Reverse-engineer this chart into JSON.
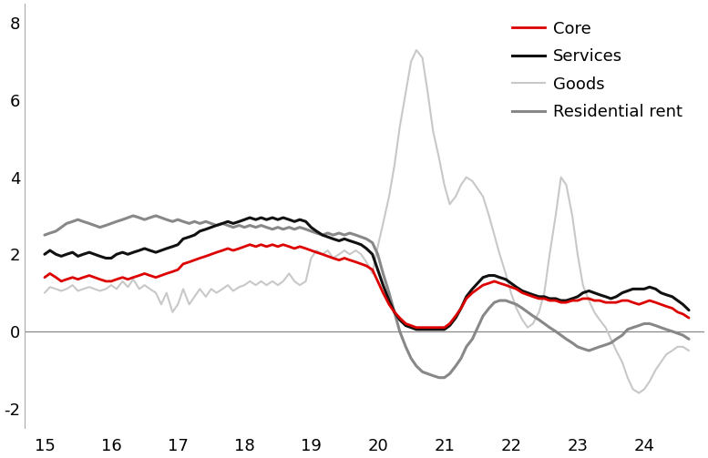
{
  "xlim": [
    14.7,
    24.9
  ],
  "ylim": [
    -2.5,
    8.5
  ],
  "yticks": [
    -2,
    0,
    2,
    4,
    6,
    8
  ],
  "xticks": [
    15,
    16,
    17,
    18,
    19,
    20,
    21,
    22,
    23,
    24
  ],
  "legend_labels": [
    "Core",
    "Services",
    "Goods",
    "Residential rent"
  ],
  "line_colors": {
    "core": "#dd0000",
    "services": "#111111",
    "goods": "#c8c8c8",
    "residential_rent": "#888888"
  },
  "line_widths": {
    "core": 2.0,
    "services": 2.2,
    "goods": 1.5,
    "residential_rent": 2.2
  },
  "core": {
    "x": [
      15.0,
      15.08,
      15.17,
      15.25,
      15.33,
      15.42,
      15.5,
      15.58,
      15.67,
      15.75,
      15.83,
      15.92,
      16.0,
      16.08,
      16.17,
      16.25,
      16.33,
      16.42,
      16.5,
      16.58,
      16.67,
      16.75,
      16.83,
      16.92,
      17.0,
      17.08,
      17.17,
      17.25,
      17.33,
      17.42,
      17.5,
      17.58,
      17.67,
      17.75,
      17.83,
      17.92,
      18.0,
      18.08,
      18.17,
      18.25,
      18.33,
      18.42,
      18.5,
      18.58,
      18.67,
      18.75,
      18.83,
      18.92,
      19.0,
      19.08,
      19.17,
      19.25,
      19.33,
      19.42,
      19.5,
      19.58,
      19.67,
      19.75,
      19.83,
      19.92,
      20.0,
      20.08,
      20.17,
      20.25,
      20.33,
      20.42,
      20.5,
      20.58,
      20.67,
      20.75,
      20.83,
      20.92,
      21.0,
      21.08,
      21.17,
      21.25,
      21.33,
      21.42,
      21.5,
      21.58,
      21.67,
      21.75,
      21.83,
      21.92,
      22.0,
      22.08,
      22.17,
      22.25,
      22.33,
      22.42,
      22.5,
      22.58,
      22.67,
      22.75,
      22.83,
      22.92,
      23.0,
      23.08,
      23.17,
      23.25,
      23.33,
      23.42,
      23.5,
      23.58,
      23.67,
      23.75,
      23.83,
      23.92,
      24.0,
      24.08,
      24.17,
      24.25,
      24.33,
      24.42,
      24.5,
      24.58,
      24.67
    ],
    "y": [
      1.4,
      1.5,
      1.4,
      1.3,
      1.35,
      1.4,
      1.35,
      1.4,
      1.45,
      1.4,
      1.35,
      1.3,
      1.3,
      1.35,
      1.4,
      1.35,
      1.4,
      1.45,
      1.5,
      1.45,
      1.4,
      1.45,
      1.5,
      1.55,
      1.6,
      1.75,
      1.8,
      1.85,
      1.9,
      1.95,
      2.0,
      2.05,
      2.1,
      2.15,
      2.1,
      2.15,
      2.2,
      2.25,
      2.2,
      2.25,
      2.2,
      2.25,
      2.2,
      2.25,
      2.2,
      2.15,
      2.2,
      2.15,
      2.1,
      2.05,
      2.0,
      1.95,
      1.9,
      1.85,
      1.9,
      1.85,
      1.8,
      1.75,
      1.7,
      1.6,
      1.3,
      1.0,
      0.7,
      0.5,
      0.35,
      0.2,
      0.15,
      0.1,
      0.1,
      0.1,
      0.1,
      0.1,
      0.1,
      0.2,
      0.4,
      0.6,
      0.85,
      1.0,
      1.1,
      1.2,
      1.25,
      1.3,
      1.25,
      1.2,
      1.15,
      1.1,
      1.0,
      0.95,
      0.9,
      0.85,
      0.85,
      0.8,
      0.8,
      0.75,
      0.75,
      0.8,
      0.8,
      0.85,
      0.85,
      0.8,
      0.8,
      0.75,
      0.75,
      0.75,
      0.8,
      0.8,
      0.75,
      0.7,
      0.75,
      0.8,
      0.75,
      0.7,
      0.65,
      0.6,
      0.5,
      0.45,
      0.35
    ]
  },
  "services": {
    "x": [
      15.0,
      15.08,
      15.17,
      15.25,
      15.33,
      15.42,
      15.5,
      15.58,
      15.67,
      15.75,
      15.83,
      15.92,
      16.0,
      16.08,
      16.17,
      16.25,
      16.33,
      16.42,
      16.5,
      16.58,
      16.67,
      16.75,
      16.83,
      16.92,
      17.0,
      17.08,
      17.17,
      17.25,
      17.33,
      17.42,
      17.5,
      17.58,
      17.67,
      17.75,
      17.83,
      17.92,
      18.0,
      18.08,
      18.17,
      18.25,
      18.33,
      18.42,
      18.5,
      18.58,
      18.67,
      18.75,
      18.83,
      18.92,
      19.0,
      19.08,
      19.17,
      19.25,
      19.33,
      19.42,
      19.5,
      19.58,
      19.67,
      19.75,
      19.83,
      19.92,
      20.0,
      20.08,
      20.17,
      20.25,
      20.33,
      20.42,
      20.5,
      20.58,
      20.67,
      20.75,
      20.83,
      20.92,
      21.0,
      21.08,
      21.17,
      21.25,
      21.33,
      21.42,
      21.5,
      21.58,
      21.67,
      21.75,
      21.83,
      21.92,
      22.0,
      22.08,
      22.17,
      22.25,
      22.33,
      22.42,
      22.5,
      22.58,
      22.67,
      22.75,
      22.83,
      22.92,
      23.0,
      23.08,
      23.17,
      23.25,
      23.33,
      23.42,
      23.5,
      23.58,
      23.67,
      23.75,
      23.83,
      23.92,
      24.0,
      24.08,
      24.17,
      24.25,
      24.33,
      24.42,
      24.5,
      24.58,
      24.67
    ],
    "y": [
      2.0,
      2.1,
      2.0,
      1.95,
      2.0,
      2.05,
      1.95,
      2.0,
      2.05,
      2.0,
      1.95,
      1.9,
      1.9,
      2.0,
      2.05,
      2.0,
      2.05,
      2.1,
      2.15,
      2.1,
      2.05,
      2.1,
      2.15,
      2.2,
      2.25,
      2.4,
      2.45,
      2.5,
      2.6,
      2.65,
      2.7,
      2.75,
      2.8,
      2.85,
      2.8,
      2.85,
      2.9,
      2.95,
      2.9,
      2.95,
      2.9,
      2.95,
      2.9,
      2.95,
      2.9,
      2.85,
      2.9,
      2.85,
      2.7,
      2.6,
      2.5,
      2.45,
      2.4,
      2.35,
      2.4,
      2.35,
      2.3,
      2.25,
      2.15,
      2.0,
      1.6,
      1.2,
      0.8,
      0.5,
      0.3,
      0.15,
      0.1,
      0.05,
      0.05,
      0.05,
      0.05,
      0.05,
      0.05,
      0.15,
      0.35,
      0.6,
      0.9,
      1.1,
      1.25,
      1.4,
      1.45,
      1.45,
      1.4,
      1.35,
      1.25,
      1.15,
      1.05,
      1.0,
      0.95,
      0.9,
      0.9,
      0.85,
      0.85,
      0.8,
      0.8,
      0.85,
      0.9,
      1.0,
      1.05,
      1.0,
      0.95,
      0.9,
      0.85,
      0.9,
      1.0,
      1.05,
      1.1,
      1.1,
      1.1,
      1.15,
      1.1,
      1.0,
      0.95,
      0.9,
      0.8,
      0.7,
      0.55
    ]
  },
  "goods": {
    "x": [
      15.0,
      15.08,
      15.17,
      15.25,
      15.33,
      15.42,
      15.5,
      15.58,
      15.67,
      15.75,
      15.83,
      15.92,
      16.0,
      16.08,
      16.17,
      16.25,
      16.33,
      16.42,
      16.5,
      16.58,
      16.67,
      16.75,
      16.83,
      16.92,
      17.0,
      17.08,
      17.17,
      17.25,
      17.33,
      17.42,
      17.5,
      17.58,
      17.67,
      17.75,
      17.83,
      17.92,
      18.0,
      18.08,
      18.17,
      18.25,
      18.33,
      18.42,
      18.5,
      18.58,
      18.67,
      18.75,
      18.83,
      18.92,
      19.0,
      19.08,
      19.17,
      19.25,
      19.33,
      19.42,
      19.5,
      19.58,
      19.67,
      19.75,
      19.83,
      19.92,
      20.0,
      20.08,
      20.17,
      20.25,
      20.33,
      20.42,
      20.5,
      20.58,
      20.67,
      20.75,
      20.83,
      20.92,
      21.0,
      21.08,
      21.17,
      21.25,
      21.33,
      21.42,
      21.5,
      21.58,
      21.67,
      21.75,
      21.83,
      21.92,
      22.0,
      22.08,
      22.17,
      22.25,
      22.33,
      22.42,
      22.5,
      22.58,
      22.67,
      22.75,
      22.83,
      22.92,
      23.0,
      23.08,
      23.17,
      23.25,
      23.33,
      23.42,
      23.5,
      23.58,
      23.67,
      23.75,
      23.83,
      23.92,
      24.0,
      24.08,
      24.17,
      24.25,
      24.33,
      24.42,
      24.5,
      24.58,
      24.67
    ],
    "y": [
      1.0,
      1.15,
      1.1,
      1.05,
      1.1,
      1.2,
      1.05,
      1.1,
      1.15,
      1.1,
      1.05,
      1.1,
      1.2,
      1.1,
      1.3,
      1.15,
      1.35,
      1.1,
      1.2,
      1.1,
      1.0,
      0.7,
      1.0,
      0.5,
      0.7,
      1.1,
      0.7,
      0.9,
      1.1,
      0.9,
      1.1,
      1.0,
      1.1,
      1.2,
      1.05,
      1.15,
      1.2,
      1.3,
      1.2,
      1.3,
      1.2,
      1.3,
      1.2,
      1.3,
      1.5,
      1.3,
      1.2,
      1.3,
      1.9,
      2.1,
      2.0,
      2.1,
      1.9,
      2.0,
      2.1,
      2.0,
      2.1,
      2.0,
      1.8,
      1.5,
      2.2,
      2.8,
      3.5,
      4.3,
      5.3,
      6.2,
      7.0,
      7.3,
      7.1,
      6.2,
      5.2,
      4.5,
      3.8,
      3.3,
      3.5,
      3.8,
      4.0,
      3.9,
      3.7,
      3.5,
      3.0,
      2.5,
      2.0,
      1.5,
      1.0,
      0.6,
      0.3,
      0.1,
      0.2,
      0.5,
      1.0,
      2.0,
      3.0,
      4.0,
      3.8,
      3.0,
      2.0,
      1.2,
      0.8,
      0.5,
      0.3,
      0.1,
      -0.2,
      -0.5,
      -0.8,
      -1.2,
      -1.5,
      -1.6,
      -1.5,
      -1.3,
      -1.0,
      -0.8,
      -0.6,
      -0.5,
      -0.4,
      -0.4,
      -0.5
    ]
  },
  "residential_rent": {
    "x": [
      15.0,
      15.08,
      15.17,
      15.25,
      15.33,
      15.42,
      15.5,
      15.58,
      15.67,
      15.75,
      15.83,
      15.92,
      16.0,
      16.08,
      16.17,
      16.25,
      16.33,
      16.42,
      16.5,
      16.58,
      16.67,
      16.75,
      16.83,
      16.92,
      17.0,
      17.08,
      17.17,
      17.25,
      17.33,
      17.42,
      17.5,
      17.58,
      17.67,
      17.75,
      17.83,
      17.92,
      18.0,
      18.08,
      18.17,
      18.25,
      18.33,
      18.42,
      18.5,
      18.58,
      18.67,
      18.75,
      18.83,
      18.92,
      19.0,
      19.08,
      19.17,
      19.25,
      19.33,
      19.42,
      19.5,
      19.58,
      19.67,
      19.75,
      19.83,
      19.92,
      20.0,
      20.08,
      20.17,
      20.25,
      20.33,
      20.42,
      20.5,
      20.58,
      20.67,
      20.75,
      20.83,
      20.92,
      21.0,
      21.08,
      21.17,
      21.25,
      21.33,
      21.42,
      21.5,
      21.58,
      21.67,
      21.75,
      21.83,
      21.92,
      22.0,
      22.08,
      22.17,
      22.25,
      22.33,
      22.42,
      22.5,
      22.58,
      22.67,
      22.75,
      22.83,
      22.92,
      23.0,
      23.08,
      23.17,
      23.25,
      23.33,
      23.42,
      23.5,
      23.58,
      23.67,
      23.75,
      23.83,
      23.92,
      24.0,
      24.08,
      24.17,
      24.25,
      24.33,
      24.42,
      24.5,
      24.58,
      24.67
    ],
    "y": [
      2.5,
      2.55,
      2.6,
      2.7,
      2.8,
      2.85,
      2.9,
      2.85,
      2.8,
      2.75,
      2.7,
      2.75,
      2.8,
      2.85,
      2.9,
      2.95,
      3.0,
      2.95,
      2.9,
      2.95,
      3.0,
      2.95,
      2.9,
      2.85,
      2.9,
      2.85,
      2.8,
      2.85,
      2.8,
      2.85,
      2.8,
      2.75,
      2.8,
      2.75,
      2.7,
      2.75,
      2.7,
      2.75,
      2.7,
      2.75,
      2.7,
      2.65,
      2.7,
      2.65,
      2.7,
      2.65,
      2.7,
      2.65,
      2.6,
      2.55,
      2.5,
      2.55,
      2.5,
      2.55,
      2.5,
      2.55,
      2.5,
      2.45,
      2.4,
      2.3,
      2.0,
      1.5,
      1.0,
      0.5,
      0.0,
      -0.4,
      -0.7,
      -0.9,
      -1.05,
      -1.1,
      -1.15,
      -1.2,
      -1.2,
      -1.1,
      -0.9,
      -0.7,
      -0.4,
      -0.2,
      0.1,
      0.4,
      0.6,
      0.75,
      0.8,
      0.8,
      0.75,
      0.7,
      0.6,
      0.5,
      0.4,
      0.3,
      0.2,
      0.1,
      0.0,
      -0.1,
      -0.2,
      -0.3,
      -0.4,
      -0.45,
      -0.5,
      -0.45,
      -0.4,
      -0.35,
      -0.3,
      -0.2,
      -0.1,
      0.05,
      0.1,
      0.15,
      0.2,
      0.2,
      0.15,
      0.1,
      0.05,
      0.0,
      -0.05,
      -0.1,
      -0.2
    ]
  },
  "background_color": "#ffffff",
  "zero_line_color": "#888888"
}
